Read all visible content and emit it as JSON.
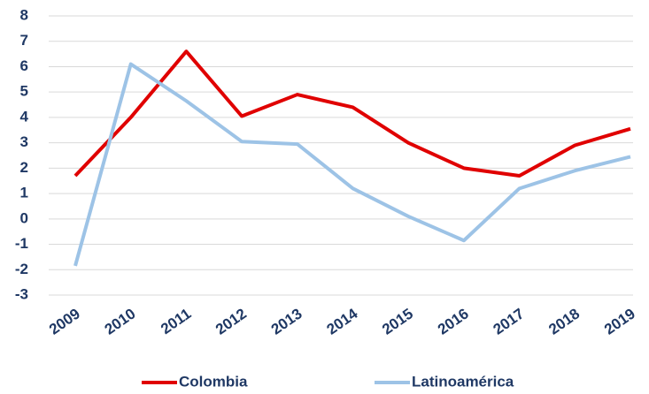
{
  "chart_data": {
    "type": "line",
    "categories": [
      "2009",
      "2010",
      "2011",
      "2012",
      "2013",
      "2014",
      "2015",
      "2016",
      "2017",
      "2018",
      "2019"
    ],
    "series": [
      {
        "name": "Colombia",
        "color": "#e00000",
        "values": [
          1.7,
          4.0,
          6.6,
          4.05,
          4.9,
          4.4,
          3.0,
          2.0,
          1.7,
          2.9,
          3.55
        ]
      },
      {
        "name": "Latinoamérica",
        "color": "#9dc3e6",
        "values": [
          -1.85,
          6.1,
          4.65,
          3.05,
          2.95,
          1.2,
          0.1,
          -0.85,
          1.2,
          1.9,
          2.45
        ]
      }
    ],
    "ylim": [
      -3,
      8
    ],
    "yticks": [
      -3,
      -2,
      -1,
      0,
      1,
      2,
      3,
      4,
      5,
      6,
      7,
      8
    ],
    "grid": true,
    "legend": "bottom"
  }
}
